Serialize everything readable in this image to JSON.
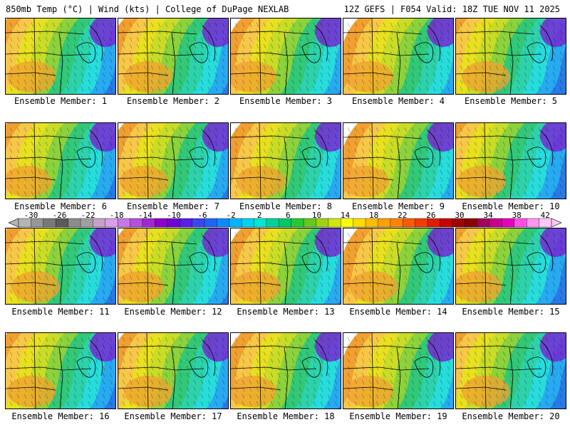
{
  "header": {
    "left": "850mb Temp (°C) | Wind (kts) | College of DuPage NEXLAB",
    "right": "12Z GEFS | F054 Valid: 18Z TUE NOV 11 2025"
  },
  "members": [
    {
      "label": "Ensemble Member: 1"
    },
    {
      "label": "Ensemble Member: 2"
    },
    {
      "label": "Ensemble Member: 3"
    },
    {
      "label": "Ensemble Member: 4"
    },
    {
      "label": "Ensemble Member: 5"
    },
    {
      "label": "Ensemble Member: 6"
    },
    {
      "label": "Ensemble Member: 7"
    },
    {
      "label": "Ensemble Member: 8"
    },
    {
      "label": "Ensemble Member: 9"
    },
    {
      "label": "Ensemble Member: 10"
    },
    {
      "label": "Ensemble Member: 11"
    },
    {
      "label": "Ensemble Member: 12"
    },
    {
      "label": "Ensemble Member: 13"
    },
    {
      "label": "Ensemble Member: 14"
    },
    {
      "label": "Ensemble Member: 15"
    },
    {
      "label": "Ensemble Member: 16"
    },
    {
      "label": "Ensemble Member: 17"
    },
    {
      "label": "Ensemble Member: 18"
    },
    {
      "label": "Ensemble Member: 19"
    },
    {
      "label": "Ensemble Member: 20"
    }
  ],
  "colorbar": {
    "labels": [
      "-30",
      "-26",
      "-22",
      "-18",
      "-14",
      "-10",
      "-6",
      "-2",
      "2",
      "6",
      "10",
      "14",
      "18",
      "22",
      "26",
      "30",
      "34",
      "38",
      "42"
    ],
    "colors": [
      "#b4b4b4",
      "#969696",
      "#787878",
      "#5a5a5a",
      "#8c8c8c",
      "#a0a0a0",
      "#c8a0c8",
      "#d8a0e8",
      "#c878e6",
      "#b450dc",
      "#a028d2",
      "#8c00c8",
      "#6e00d2",
      "#5a1ee6",
      "#3c46f0",
      "#1e64f5",
      "#0a8cff",
      "#00b4ff",
      "#00d2f0",
      "#00e6d2",
      "#00d296",
      "#00c864",
      "#28c832",
      "#64c81e",
      "#a0d214",
      "#d2e60a",
      "#ffff00",
      "#ffdc00",
      "#ffbe00",
      "#ffa000",
      "#ff8200",
      "#ff5a00",
      "#f03c00",
      "#dc1e00",
      "#c80000",
      "#a00000",
      "#8c0000",
      "#a0005a",
      "#c8008c",
      "#e600be",
      "#ff50e6",
      "#ff96f0",
      "#ffc8f8"
    ]
  },
  "palette": {
    "warm": [
      "#f0a030",
      "#f7c848",
      "#e8e020",
      "#c8dc28",
      "#8cd23c"
    ],
    "cool": [
      "#32c878",
      "#2ed2aa",
      "#28dcdc",
      "#28aaf0",
      "#287ae6",
      "#3246e0",
      "#5028d2",
      "#7a1ed2"
    ]
  }
}
